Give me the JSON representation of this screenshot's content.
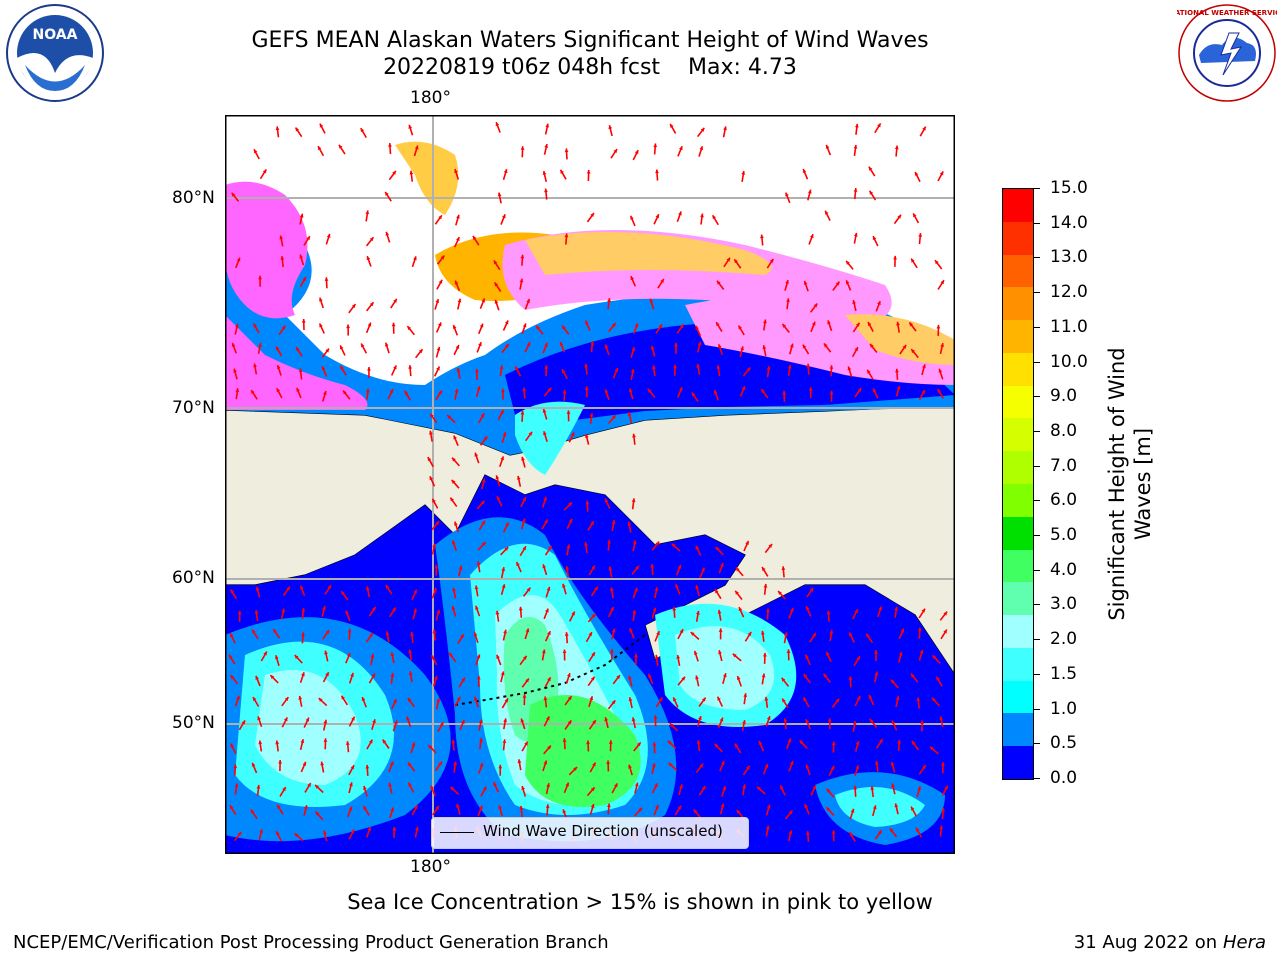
{
  "title": {
    "line1": "GEFS MEAN Alaskan Waters Significant Height of Wind Waves",
    "line2": "20220819 t06z 048h fcst",
    "max_label": "Max: 4.73"
  },
  "logos": {
    "left": {
      "icon": "noaa-logo",
      "text": "NOAA"
    },
    "right": {
      "icon": "nws-logo",
      "text": "NATIONAL WEATHER SERVICE"
    }
  },
  "map": {
    "lon_label_top": "180°",
    "lon_label_bottom": "180°",
    "lat_labels": [
      "80°N",
      "70°N",
      "60°N",
      "50°N"
    ],
    "legend_label": "Wind Wave Direction (unscaled)",
    "arrow_color": "#ff0000",
    "land_color": "#efedde"
  },
  "colorbar": {
    "label_line1": "Significant Height of Wind",
    "label_line2": "Waves [m]",
    "ticks": [
      "15.0",
      "14.0",
      "13.0",
      "12.0",
      "11.0",
      "10.0",
      "9.0",
      "8.0",
      "7.0",
      "6.0",
      "5.0",
      "4.0",
      "3.0",
      "2.0",
      "1.5",
      "1.0",
      "0.5",
      "0.0"
    ],
    "colors": [
      "#ff0000",
      "#ff3000",
      "#ff6000",
      "#ff9000",
      "#ffb400",
      "#ffe000",
      "#f5ff00",
      "#d5ff00",
      "#b0ff00",
      "#80ff00",
      "#00e000",
      "#40ff60",
      "#60ffb0",
      "#a0ffff",
      "#40ffff",
      "#00ffff",
      "#0088ff",
      "#0000ff"
    ]
  },
  "notes": {
    "ice": "Sea Ice Concentration > 15% is shown in pink to yellow",
    "org": "NCEP/EMC/Verification Post Processing Product Generation Branch",
    "date": "31 Aug 2022 on",
    "host": "Hera"
  }
}
